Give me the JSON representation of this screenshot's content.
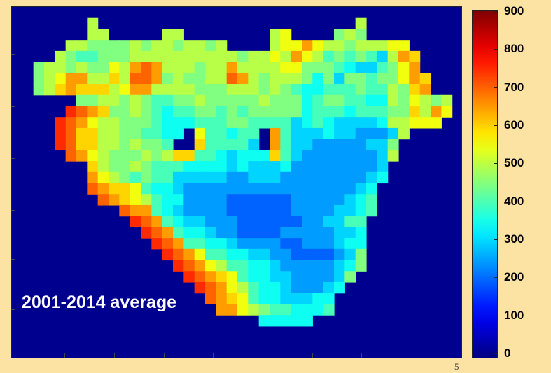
{
  "chart_data": {
    "type": "heatmap",
    "title": "",
    "annotation": "2001-2014 average",
    "xlabel": "",
    "ylabel": "",
    "colormap": "jet",
    "background_color": "#00008f",
    "colorbar": {
      "min": 0,
      "max": 900,
      "ticks": [
        "900",
        "800",
        "700",
        "600",
        "500",
        "400",
        "300",
        "200",
        "100",
        "0"
      ],
      "tick_values": [
        900,
        800,
        700,
        600,
        500,
        400,
        300,
        200,
        100,
        0
      ]
    },
    "x_tick_labels": [],
    "y_tick_labels": [],
    "grid": false,
    "cols": 42,
    "rows": 32,
    "values_note_legend": "0 = outside region; letters encode approx. value: a=200 b=250 c=300 d=350 e=400 f=450 g=500 h=550 i=600 j=650 k=700 l=750",
    "grid_rows": [
      "000000000000000000000000000000000000000000",
      "0000000g000000000000000000000000g000000000",
      "0000000gg00000gg00000000gh0000fgf000000000",
      "00000ggffffgfggfggfg0000ghhjhggfggghh00000",
      "0000gfeefffggggggggggfgghgjhgefefecgji0000",
      "00fggfgffhgjkjgggfggjgggghhfffedccefhj0000",
      "00fghjjggigkkjfgffggkjgfgggfdfcffeffhji000",
      "00fgijiiighjjggggfffgggfgfeddeeefeegfij000",
      "000000ffggfgfeeffgfffffgfffdeffeeddgfhgfg0",
      "00000lkjiffgfedeeffefefffffdeeedeeeffigjh0",
      "0000lkjhggfffedddeeeffeeeecdedccccdgghhh00",
      "0000lkiiggffeedd0heedee0jecccdccbbbcg00000",
      "0000lkiiggfgffe00ieeeec0jeccbbbbbccf000000",
      "00000kjhgfffgfgiieedcdddiecbbbbbbbcg000000",
      "0000000igffgfeeeddddcdcccdbbbbbbbbc0000000",
      "0000000jhgfefeecccccbbcccbbbbbbbbcd0000000",
      "0000000kjiiheddcbbbbbbbbbbbbbbbbcd00000000",
      "00000000kjihgeddbbbbaaaaaabbbbbcde00000000",
      "0000000000kjjedcbbbbaaaaaabbbbccde00000000",
      "00000000000lkjedccbbbaaaaaabbccee000000000",
      "000000000000lkjeddcbbaaaabbbbbccd000000000",
      "0000000000000lkjeeddcbbbbaabbbcdd000000000",
      "00000000000000lkjheeddccbbaaaabcf000000000",
      "000000000000000lkjhgeeddcbbbbbcdf000000000",
      "0000000000000000lkjiheddccbbbbcf0000000000",
      "00000000000000000lkjhgeddcbbbcd00000000000",
      "000000000000000000kjiheddcccdd000000000000",
      "0000000000000000000jjhgfeeddde000000000000",
      "00000000000000000000000ddddd00000000000000",
      "000000000000000000000000000000000000000000",
      "000000000000000000000000000000000000000000",
      "000000000000000000000000000000000000000000"
    ],
    "x_tick_positions_fraction": [],
    "notes": ""
  },
  "axis": {
    "stray_glyph": "5"
  }
}
